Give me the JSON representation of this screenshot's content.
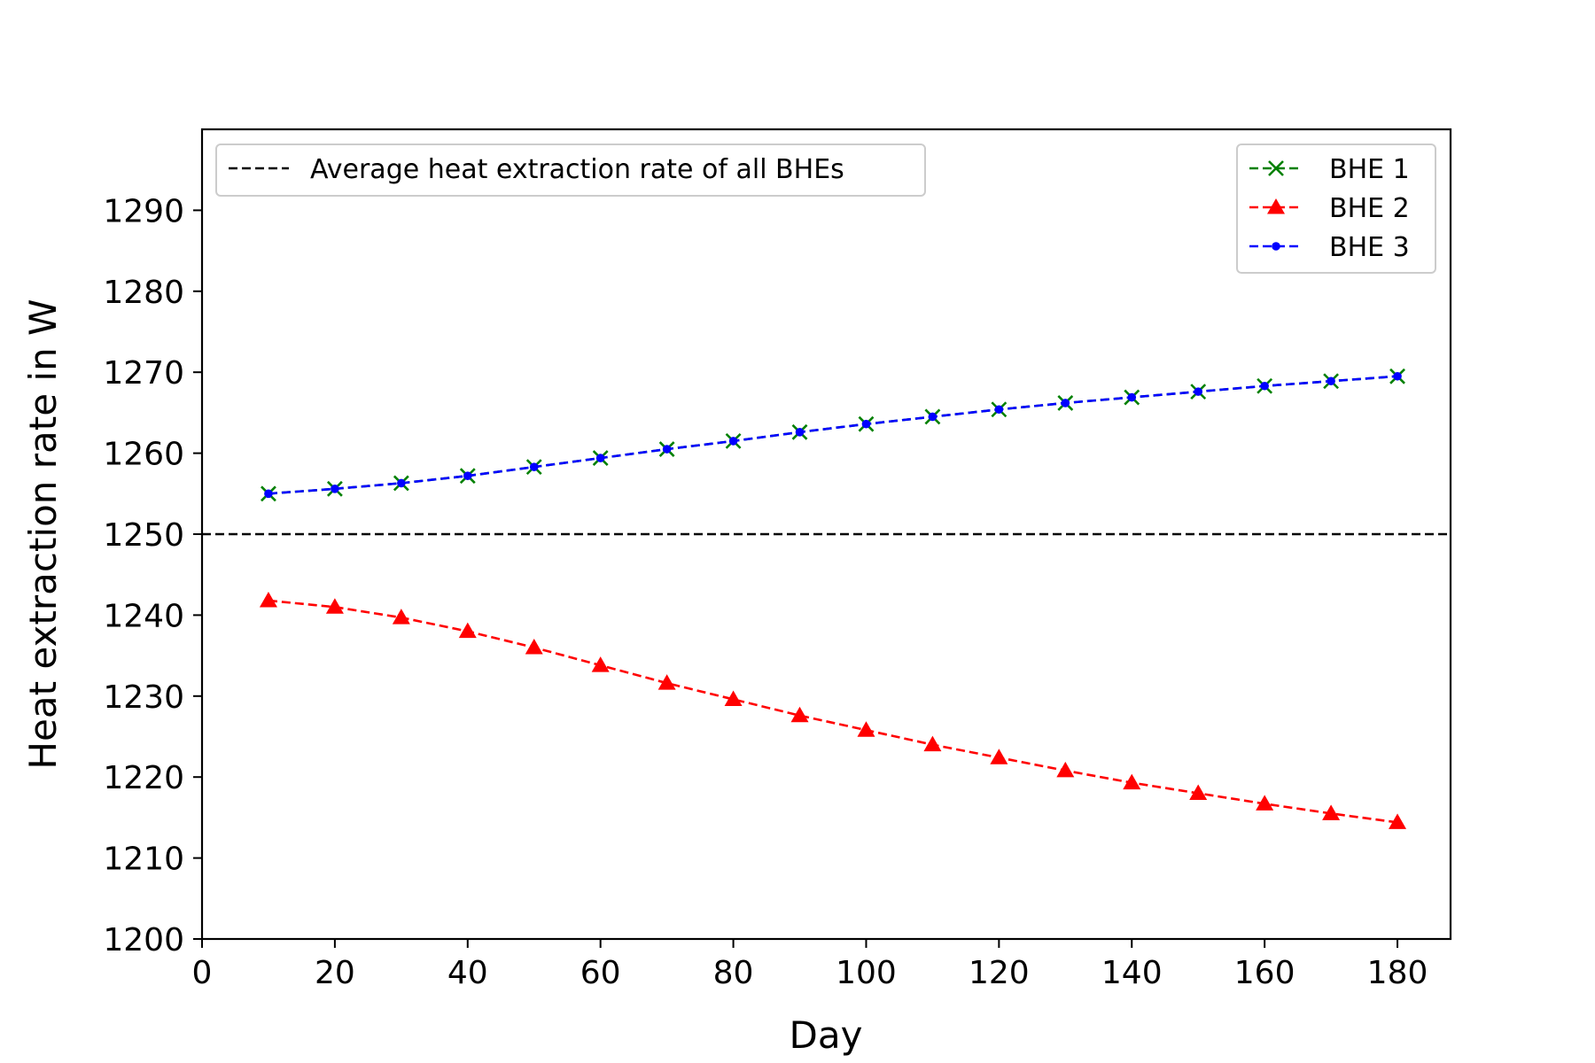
{
  "chart_data": {
    "type": "line",
    "title": "",
    "xlabel": "Day",
    "ylabel": "Heat extraction rate in W",
    "xlim": [
      0,
      188
    ],
    "ylim": [
      1200,
      1300
    ],
    "xticks": [
      0,
      20,
      40,
      60,
      80,
      100,
      120,
      140,
      160,
      180
    ],
    "yticks": [
      1200,
      1210,
      1220,
      1230,
      1240,
      1250,
      1260,
      1270,
      1280,
      1290
    ],
    "grid": false,
    "x": [
      10,
      20,
      30,
      40,
      50,
      60,
      70,
      80,
      90,
      100,
      110,
      120,
      130,
      140,
      150,
      160,
      170,
      180
    ],
    "series": [
      {
        "name": "BHE 1",
        "color": "#008000",
        "marker": "x",
        "linestyle": "dashed",
        "values": [
          1255.0,
          1255.6,
          1256.3,
          1257.2,
          1258.3,
          1259.4,
          1260.5,
          1261.5,
          1262.6,
          1263.6,
          1264.5,
          1265.4,
          1266.2,
          1266.9,
          1267.6,
          1268.3,
          1268.9,
          1269.5
        ]
      },
      {
        "name": "BHE 2",
        "color": "#ff0000",
        "marker": "triangle",
        "linestyle": "dashed",
        "values": [
          1241.8,
          1241.0,
          1239.7,
          1238.0,
          1236.0,
          1233.8,
          1231.6,
          1229.6,
          1227.6,
          1225.8,
          1224.0,
          1222.4,
          1220.8,
          1219.3,
          1218.0,
          1216.7,
          1215.5,
          1214.4
        ]
      },
      {
        "name": "BHE 3",
        "color": "#0000ff",
        "marker": "dot",
        "linestyle": "dashed",
        "values": [
          1255.0,
          1255.6,
          1256.3,
          1257.2,
          1258.3,
          1259.4,
          1260.5,
          1261.5,
          1262.6,
          1263.6,
          1264.5,
          1265.4,
          1266.2,
          1266.9,
          1267.6,
          1268.3,
          1268.9,
          1269.5
        ]
      }
    ],
    "reference_line": {
      "name": "Average heat extraction rate of all BHEs",
      "value": 1250,
      "color": "#000000",
      "linestyle": "dashed"
    },
    "legend_series_position": "top-right",
    "legend_reference_position": "top-left"
  }
}
